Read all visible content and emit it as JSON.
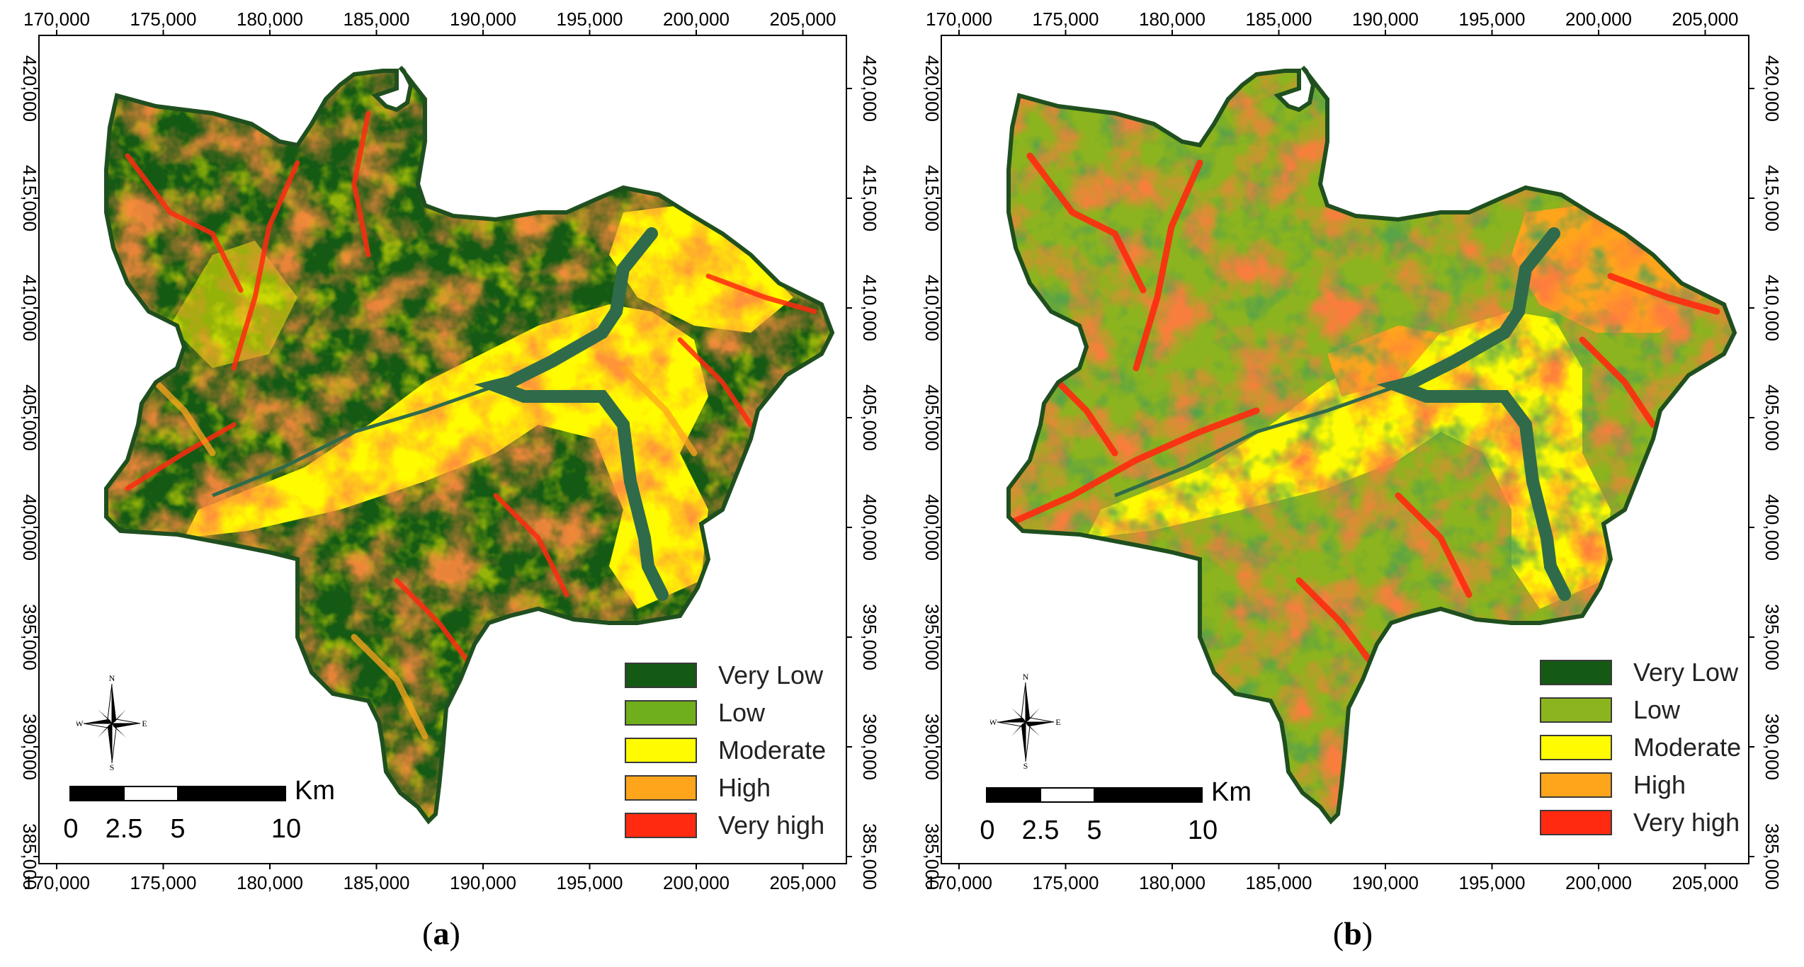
{
  "panels": [
    {
      "label": "a",
      "x_ticks": [
        "170,000",
        "175,000",
        "180,000",
        "185,000",
        "190,000",
        "195,000",
        "200,000",
        "205,000"
      ],
      "y_ticks": [
        "420,000",
        "415,000",
        "410,000",
        "405,000",
        "400,000",
        "395,000",
        "390,000",
        "385,000"
      ],
      "legend": [
        {
          "label": "Very Low",
          "color": "#145a14"
        },
        {
          "label": "Low",
          "color": "#6fae1c"
        },
        {
          "label": "Moderate",
          "color": "#fffb00"
        },
        {
          "label": "High",
          "color": "#ffa51c"
        },
        {
          "label": "Very high",
          "color": "#ff2a10"
        }
      ],
      "scale": {
        "numbers": [
          "0",
          "2.5",
          "5",
          "10"
        ],
        "unit": "Km"
      },
      "compass": {
        "n": "N",
        "s": "S",
        "e": "E",
        "w": "W"
      },
      "dominant_class": "Very Low"
    },
    {
      "label": "b",
      "x_ticks": [
        "170,000",
        "175,000",
        "180,000",
        "185,000",
        "190,000",
        "195,000",
        "200,000",
        "205,000"
      ],
      "y_ticks": [
        "420,000",
        "415,000",
        "410,000",
        "405,000",
        "400,000",
        "395,000",
        "390,000",
        "385,000"
      ],
      "legend": [
        {
          "label": "Very Low",
          "color": "#145a14"
        },
        {
          "label": "Low",
          "color": "#8cb41e"
        },
        {
          "label": "Moderate",
          "color": "#fffb00"
        },
        {
          "label": "High",
          "color": "#ffa51c"
        },
        {
          "label": "Very high",
          "color": "#ff2a10"
        }
      ],
      "scale": {
        "numbers": [
          "0",
          "2.5",
          "5",
          "10"
        ],
        "unit": "Km"
      },
      "compass": {
        "n": "N",
        "s": "S",
        "e": "E",
        "w": "W"
      },
      "dominant_class": "Low"
    }
  ],
  "colors": {
    "river": "#2f6b4a",
    "outline": "#1f4f1f"
  }
}
